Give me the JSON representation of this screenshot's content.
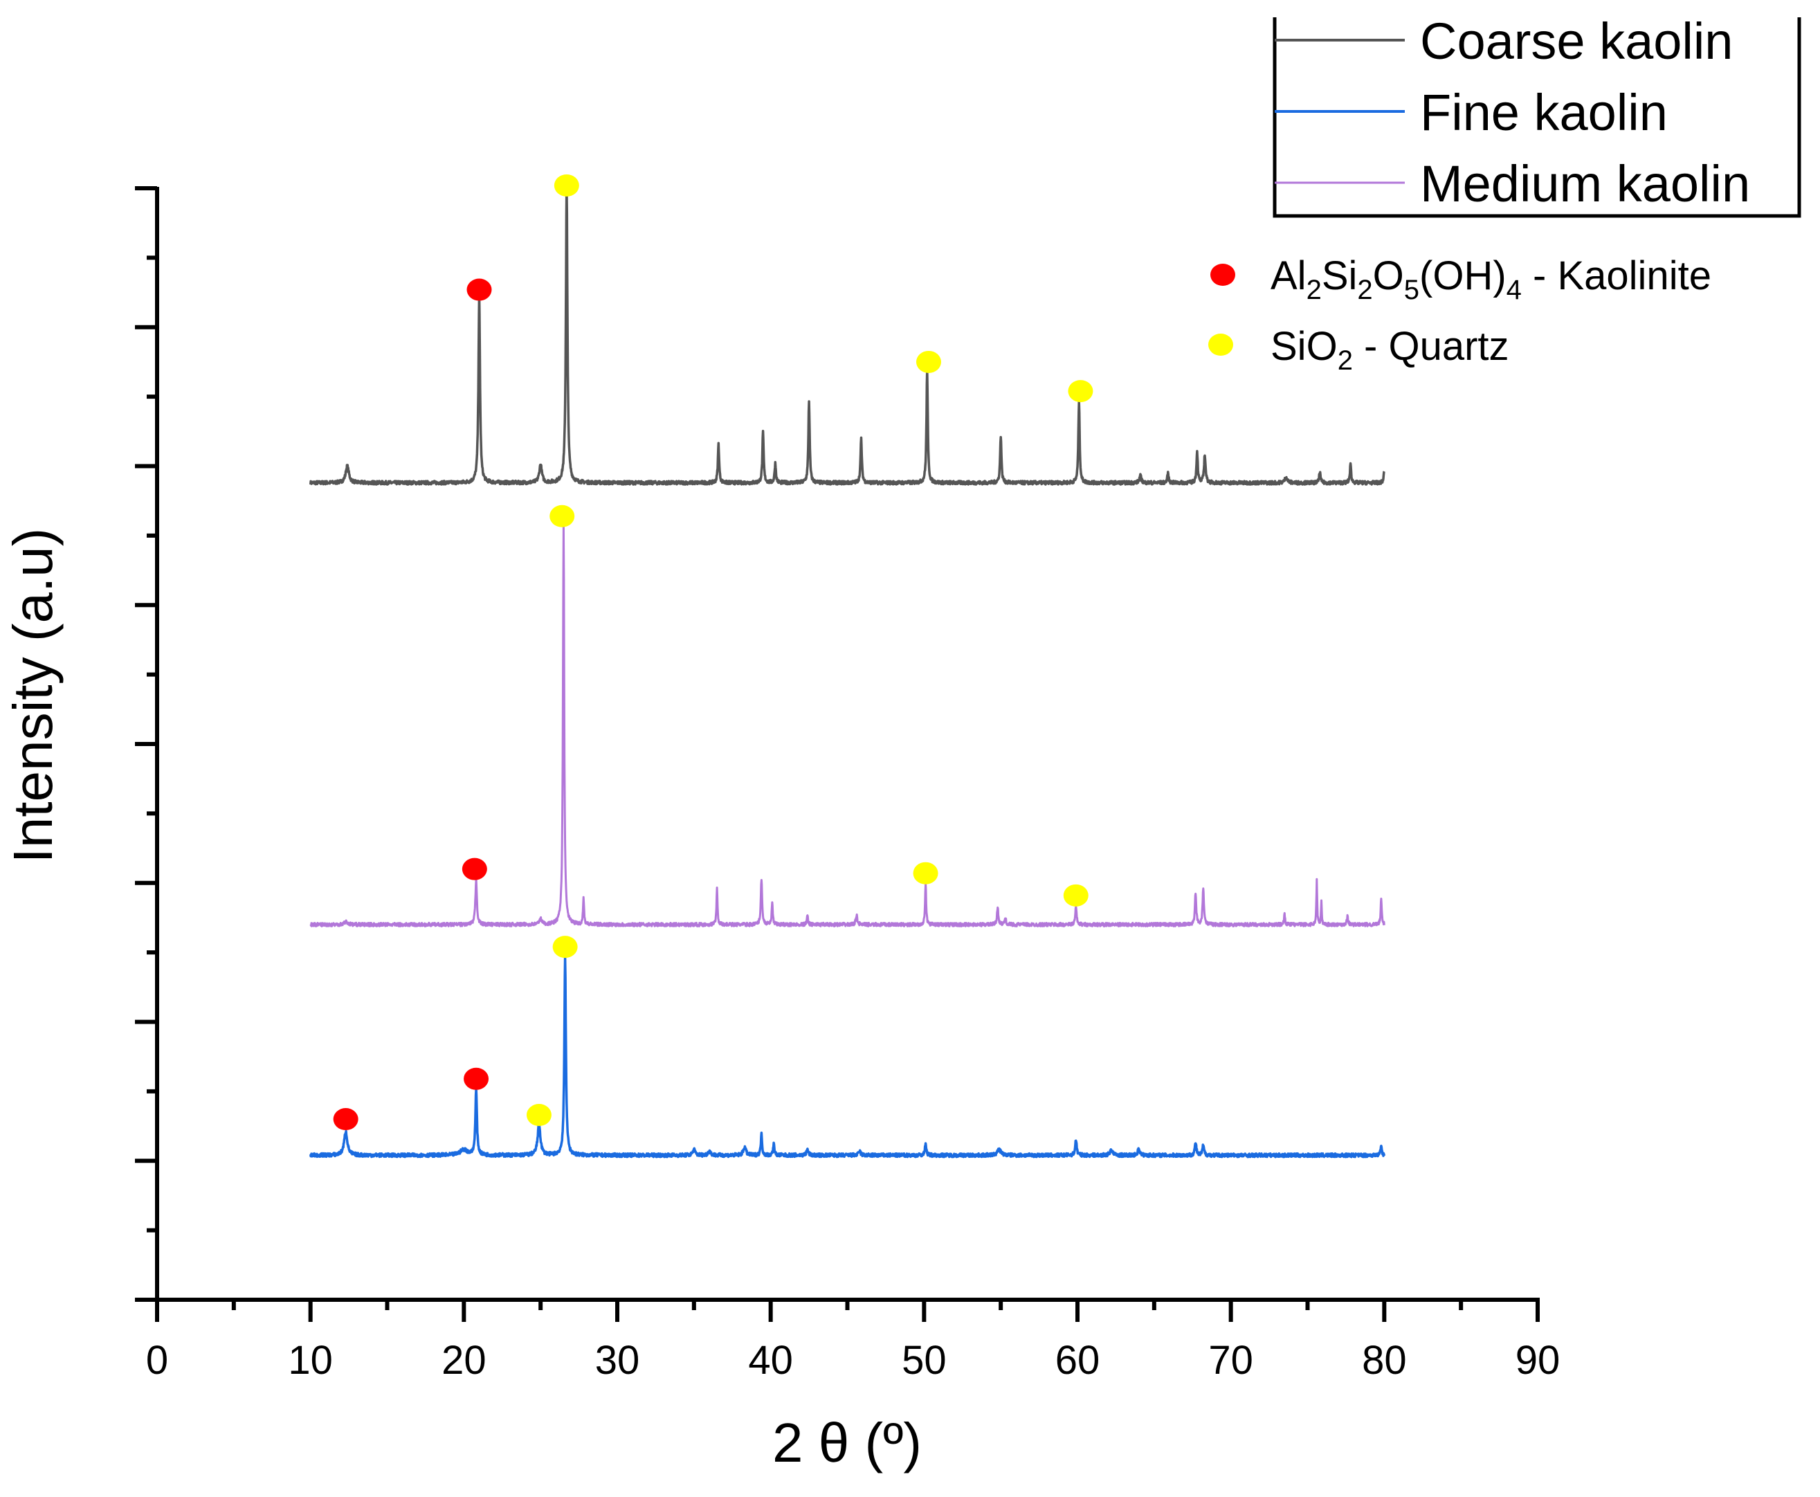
{
  "chart_data": {
    "type": "line",
    "title": "",
    "xlabel": "2 θ (º)",
    "ylabel": "Intensity (a.u)",
    "xlim": [
      0,
      90
    ],
    "ylim": [
      0,
      8
    ],
    "xticks": [
      0,
      10,
      20,
      30,
      40,
      50,
      60,
      70,
      80,
      90
    ],
    "x_minor_step": 5,
    "y_major_step": 1,
    "y_minor_step": 0.5,
    "y_tick_labels_shown": false,
    "grid": false,
    "x_range_data": [
      10,
      80
    ],
    "series": [
      {
        "name": "Coarse kaolin",
        "color": "#555555",
        "baseline": 5.88,
        "peaks": [
          {
            "x": 12.4,
            "h": 0.12,
            "w": 0.25
          },
          {
            "x": 21.0,
            "h": 1.35,
            "w": 0.12
          },
          {
            "x": 25.0,
            "h": 0.13,
            "w": 0.2
          },
          {
            "x": 26.7,
            "h": 2.14,
            "w": 0.12
          },
          {
            "x": 36.6,
            "h": 0.28,
            "w": 0.1
          },
          {
            "x": 39.5,
            "h": 0.36,
            "w": 0.1
          },
          {
            "x": 40.3,
            "h": 0.14,
            "w": 0.1
          },
          {
            "x": 42.5,
            "h": 0.59,
            "w": 0.1
          },
          {
            "x": 45.9,
            "h": 0.32,
            "w": 0.1
          },
          {
            "x": 50.2,
            "h": 0.81,
            "w": 0.1
          },
          {
            "x": 55.0,
            "h": 0.34,
            "w": 0.1
          },
          {
            "x": 60.1,
            "h": 0.59,
            "w": 0.1
          },
          {
            "x": 64.1,
            "h": 0.05,
            "w": 0.15
          },
          {
            "x": 65.9,
            "h": 0.07,
            "w": 0.1
          },
          {
            "x": 67.8,
            "h": 0.23,
            "w": 0.1
          },
          {
            "x": 68.3,
            "h": 0.2,
            "w": 0.12
          },
          {
            "x": 73.6,
            "h": 0.04,
            "w": 0.2
          },
          {
            "x": 75.8,
            "h": 0.08,
            "w": 0.1
          },
          {
            "x": 77.8,
            "h": 0.13,
            "w": 0.1
          },
          {
            "x": 80.0,
            "h": 0.08,
            "w": 0.1
          }
        ]
      },
      {
        "name": "Fine kaolin",
        "color": "#1a6be0",
        "baseline": 1.04,
        "peaks": [
          {
            "x": 12.3,
            "h": 0.17,
            "w": 0.25
          },
          {
            "x": 20.0,
            "h": 0.04,
            "w": 0.6
          },
          {
            "x": 20.8,
            "h": 0.47,
            "w": 0.12
          },
          {
            "x": 24.9,
            "h": 0.22,
            "w": 0.22
          },
          {
            "x": 26.6,
            "h": 1.42,
            "w": 0.12
          },
          {
            "x": 35.0,
            "h": 0.04,
            "w": 0.2
          },
          {
            "x": 36.0,
            "h": 0.03,
            "w": 0.2
          },
          {
            "x": 38.3,
            "h": 0.06,
            "w": 0.2
          },
          {
            "x": 39.4,
            "h": 0.15,
            "w": 0.1
          },
          {
            "x": 40.2,
            "h": 0.08,
            "w": 0.1
          },
          {
            "x": 42.4,
            "h": 0.04,
            "w": 0.15
          },
          {
            "x": 45.8,
            "h": 0.03,
            "w": 0.15
          },
          {
            "x": 50.1,
            "h": 0.09,
            "w": 0.1
          },
          {
            "x": 54.9,
            "h": 0.04,
            "w": 0.3
          },
          {
            "x": 59.9,
            "h": 0.11,
            "w": 0.12
          },
          {
            "x": 62.2,
            "h": 0.04,
            "w": 0.2
          },
          {
            "x": 64.0,
            "h": 0.05,
            "w": 0.15
          },
          {
            "x": 67.7,
            "h": 0.09,
            "w": 0.12
          },
          {
            "x": 68.2,
            "h": 0.07,
            "w": 0.12
          },
          {
            "x": 79.8,
            "h": 0.07,
            "w": 0.1
          }
        ]
      },
      {
        "name": "Medium kaolin",
        "color": "#b277d9",
        "baseline": 2.7,
        "peaks": [
          {
            "x": 12.3,
            "h": 0.02,
            "w": 0.3
          },
          {
            "x": 20.8,
            "h": 0.32,
            "w": 0.12
          },
          {
            "x": 25.0,
            "h": 0.04,
            "w": 0.2
          },
          {
            "x": 26.5,
            "h": 2.87,
            "w": 0.1
          },
          {
            "x": 27.8,
            "h": 0.2,
            "w": 0.08
          },
          {
            "x": 36.5,
            "h": 0.26,
            "w": 0.08
          },
          {
            "x": 39.4,
            "h": 0.33,
            "w": 0.1
          },
          {
            "x": 40.1,
            "h": 0.16,
            "w": 0.08
          },
          {
            "x": 42.4,
            "h": 0.06,
            "w": 0.1
          },
          {
            "x": 45.6,
            "h": 0.07,
            "w": 0.12
          },
          {
            "x": 50.1,
            "h": 0.3,
            "w": 0.08
          },
          {
            "x": 54.8,
            "h": 0.13,
            "w": 0.1
          },
          {
            "x": 55.3,
            "h": 0.05,
            "w": 0.1
          },
          {
            "x": 59.9,
            "h": 0.13,
            "w": 0.1
          },
          {
            "x": 67.7,
            "h": 0.23,
            "w": 0.1
          },
          {
            "x": 68.2,
            "h": 0.27,
            "w": 0.1
          },
          {
            "x": 73.5,
            "h": 0.08,
            "w": 0.08
          },
          {
            "x": 75.6,
            "h": 0.33,
            "w": 0.06
          },
          {
            "x": 75.9,
            "h": 0.16,
            "w": 0.06
          },
          {
            "x": 77.6,
            "h": 0.06,
            "w": 0.1
          },
          {
            "x": 79.8,
            "h": 0.19,
            "w": 0.08
          }
        ]
      }
    ],
    "phase_markers": [
      {
        "phase": "Kaolinite",
        "color": "#ff0000",
        "points": [
          [
            21.0,
            7.27
          ],
          [
            20.7,
            3.1
          ],
          [
            12.3,
            1.3
          ],
          [
            20.8,
            1.59
          ]
        ]
      },
      {
        "phase": "Quartz",
        "color": "#ffff00",
        "points": [
          [
            26.7,
            8.02
          ],
          [
            50.3,
            6.75
          ],
          [
            60.2,
            6.54
          ],
          [
            26.4,
            5.64
          ],
          [
            50.1,
            3.07
          ],
          [
            59.9,
            2.91
          ],
          [
            24.9,
            1.33
          ],
          [
            26.6,
            2.54
          ]
        ]
      }
    ],
    "legend": {
      "position": "top-right",
      "entries": [
        "Coarse kaolin",
        "Fine kaolin",
        "Medium kaolin"
      ]
    },
    "marker_legend": [
      {
        "color": "#ff0000",
        "label_parts": [
          [
            "Al",
            ""
          ],
          [
            "2",
            "sub"
          ],
          [
            "Si",
            ""
          ],
          [
            "2",
            "sub"
          ],
          [
            "O",
            ""
          ],
          [
            "5",
            "sub"
          ],
          [
            "(OH)",
            ""
          ],
          [
            "4",
            "sub"
          ],
          [
            " - Kaolinite",
            ""
          ]
        ]
      },
      {
        "color": "#ffff00",
        "label_parts": [
          [
            "SiO",
            ""
          ],
          [
            "2",
            "sub"
          ],
          [
            " - Quartz",
            ""
          ]
        ]
      }
    ]
  }
}
